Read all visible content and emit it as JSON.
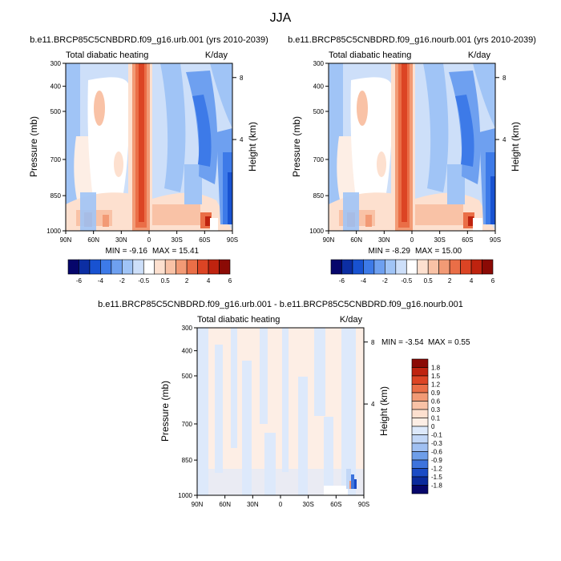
{
  "figure": {
    "title": "JJA"
  },
  "chart_data": [
    {
      "type": "heatmap",
      "title": "b.e11.BRCP85C5CNBDRD.f09_g16.urb.001 (yrs 2010-2039)",
      "left_label": "Total diabatic heating",
      "right_label": "K/day",
      "xlabel": "",
      "ylabel": "Pressure (mb)",
      "right_axis_label": "Height (km)",
      "x_ticks": [
        "90N",
        "60N",
        "30N",
        "0",
        "30S",
        "60S",
        "90S"
      ],
      "y_ticks": [
        "300",
        "400",
        "500",
        "700",
        "850",
        "1000"
      ],
      "height_ticks": [
        "8",
        "4"
      ],
      "min_label": "MIN = -9.16",
      "max_label": "MAX = 15.41",
      "colorbar_labels": [
        "-6",
        "-4",
        "-2",
        "-0.5",
        "0.5",
        "2",
        "4",
        "6"
      ]
    },
    {
      "type": "heatmap",
      "title": "b.e11.BRCP85C5CNBDRD.f09_g16.nourb.001 (yrs 2010-2039)",
      "left_label": "Total diabatic heating",
      "right_label": "K/day",
      "xlabel": "",
      "ylabel": "Pressure (mb)",
      "right_axis_label": "Height (km)",
      "x_ticks": [
        "90N",
        "60N",
        "30N",
        "0",
        "30S",
        "60S",
        "90S"
      ],
      "y_ticks": [
        "300",
        "400",
        "500",
        "700",
        "850",
        "1000"
      ],
      "height_ticks": [
        "8",
        "4"
      ],
      "min_label": "MIN = -8.29",
      "max_label": "MAX = 15.00",
      "colorbar_labels": [
        "-6",
        "-4",
        "-2",
        "-0.5",
        "0.5",
        "2",
        "4",
        "6"
      ]
    },
    {
      "type": "heatmap",
      "title": "b.e11.BRCP85C5CNBDRD.f09_g16.urb.001 - b.e11.BRCP85C5CNBDRD.f09_g16.nourb.001",
      "left_label": "Total diabatic heating",
      "right_label": "K/day",
      "xlabel": "",
      "ylabel": "Pressure (mb)",
      "right_axis_label": "Height (km)",
      "x_ticks": [
        "90N",
        "60N",
        "30N",
        "0",
        "30S",
        "60S",
        "90S"
      ],
      "y_ticks": [
        "300",
        "400",
        "500",
        "700",
        "850",
        "1000"
      ],
      "height_ticks": [
        "8",
        "4"
      ],
      "min_label": "MIN =  -3.54",
      "max_label": "MAX =   0.55",
      "colorbar_labels": [
        "1.8",
        "1.5",
        "1.2",
        "0.9",
        "0.6",
        "0.3",
        "0.1",
        "0",
        "-0.1",
        "-0.3",
        "-0.6",
        "-0.9",
        "-1.2",
        "-1.5",
        "-1.8"
      ]
    }
  ],
  "colors": {
    "abs_scale": [
      "#06066b",
      "#0c2ea3",
      "#1852d1",
      "#3d7ae8",
      "#6ea0f0",
      "#a0c4f6",
      "#cddff9",
      "#ffffff",
      "#fde0cf",
      "#f9c2a6",
      "#f29a75",
      "#ea6e47",
      "#dc4424",
      "#bf230f",
      "#8b0a05"
    ],
    "diff_scale": [
      "#8b0a05",
      "#bf230f",
      "#dc4424",
      "#ea6e47",
      "#f29a75",
      "#f9c2a6",
      "#fde0cf",
      "#fdeee5",
      "#dde9fb",
      "#c2d7f7",
      "#a0c0f2",
      "#6e9ee9",
      "#3d73dd",
      "#1a4bc5",
      "#0a2a9c",
      "#06066b"
    ]
  }
}
